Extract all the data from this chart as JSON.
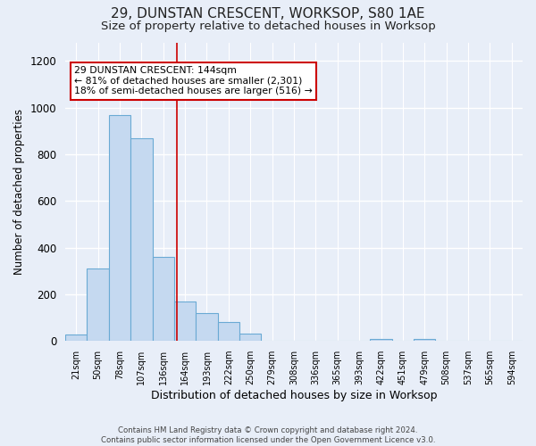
{
  "title": "29, DUNSTAN CRESCENT, WORKSOP, S80 1AE",
  "subtitle": "Size of property relative to detached houses in Worksop",
  "xlabel": "Distribution of detached houses by size in Worksop",
  "ylabel": "Number of detached properties",
  "footer_line1": "Contains HM Land Registry data © Crown copyright and database right 2024.",
  "footer_line2": "Contains public sector information licensed under the Open Government Licence v3.0.",
  "bin_labels": [
    "21sqm",
    "50sqm",
    "78sqm",
    "107sqm",
    "136sqm",
    "164sqm",
    "193sqm",
    "222sqm",
    "250sqm",
    "279sqm",
    "308sqm",
    "336sqm",
    "365sqm",
    "393sqm",
    "422sqm",
    "451sqm",
    "479sqm",
    "508sqm",
    "537sqm",
    "565sqm",
    "594sqm"
  ],
  "bar_heights": [
    28,
    310,
    970,
    870,
    360,
    170,
    120,
    80,
    30,
    0,
    0,
    0,
    0,
    0,
    10,
    0,
    10,
    0,
    0,
    0,
    0
  ],
  "bar_color": "#c5d9f0",
  "bar_edgecolor": "#6aaad4",
  "red_line_x": 4.63,
  "red_line_color": "#cc0000",
  "annotation_title": "29 DUNSTAN CRESCENT: 144sqm",
  "annotation_line1": "← 81% of detached houses are smaller (2,301)",
  "annotation_line2": "18% of semi-detached houses are larger (516) →",
  "annotation_box_facecolor": "#ffffff",
  "annotation_box_edgecolor": "#cc0000",
  "ylim": [
    0,
    1280
  ],
  "yticks": [
    0,
    200,
    400,
    600,
    800,
    1000,
    1200
  ],
  "bg_color": "#e8eef8",
  "plot_bg_color": "#e8eef8",
  "grid_color": "#ffffff",
  "title_fontsize": 11,
  "subtitle_fontsize": 9.5
}
